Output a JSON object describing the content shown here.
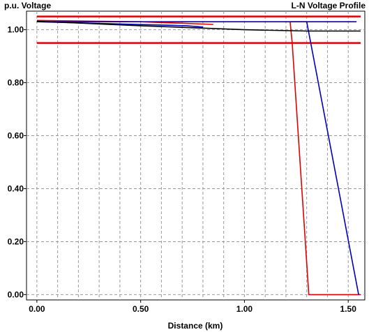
{
  "chart_data": {
    "type": "line",
    "title": "L-N Voltage Profile",
    "ylabel": "p.u. Voltage",
    "xlabel": "Distance (km)",
    "xlim": [
      -0.05,
      1.58
    ],
    "ylim": [
      -0.02,
      1.07
    ],
    "xticks": [
      0.0,
      0.5,
      1.0,
      1.5
    ],
    "xtick_labels": [
      "0.00",
      "0.50",
      "1.00",
      "1.50"
    ],
    "yticks": [
      0.0,
      0.2,
      0.4,
      0.6,
      0.8,
      1.0
    ],
    "ytick_labels": [
      "0.00",
      "0.20",
      "0.40",
      "0.60",
      "0.80",
      "1.00"
    ],
    "grid": true,
    "x_minor_step": 0.1,
    "limit_lines": [
      {
        "y": 1.05,
        "x": [
          0.0,
          1.56
        ],
        "color": "#e00000"
      },
      {
        "y": 0.95,
        "x": [
          0.0,
          1.56
        ],
        "color": "#e00000"
      }
    ],
    "series": [
      {
        "color": "#e00000",
        "points": [
          [
            0.0,
            1.035
          ],
          [
            0.5,
            1.03
          ],
          [
            0.85,
            1.02
          ]
        ]
      },
      {
        "color": "#e00000",
        "points": [
          [
            1.22,
            1.03
          ],
          [
            1.23,
            0.95
          ],
          [
            1.31,
            0.0
          ],
          [
            1.56,
            0.0
          ]
        ]
      },
      {
        "color": "#e00000",
        "points": [
          [
            1.22,
            1.03
          ],
          [
            1.3,
            1.03
          ]
        ]
      },
      {
        "color": "#0000c0",
        "points": [
          [
            0.0,
            1.03
          ],
          [
            1.3,
            1.03
          ],
          [
            1.54,
            1.03
          ]
        ]
      },
      {
        "color": "#0000c0",
        "points": [
          [
            1.3,
            1.03
          ],
          [
            1.55,
            0.0
          ]
        ]
      },
      {
        "color": "#0000c0",
        "points": [
          [
            0.0,
            1.03
          ],
          [
            0.72,
            1.015
          ],
          [
            0.8,
            1.01
          ]
        ]
      },
      {
        "color": "#000000",
        "points": [
          [
            0.0,
            1.032
          ],
          [
            0.5,
            1.015
          ],
          [
            1.0,
            1.0
          ],
          [
            1.3,
            0.995
          ],
          [
            1.56,
            0.995
          ]
        ]
      }
    ]
  }
}
